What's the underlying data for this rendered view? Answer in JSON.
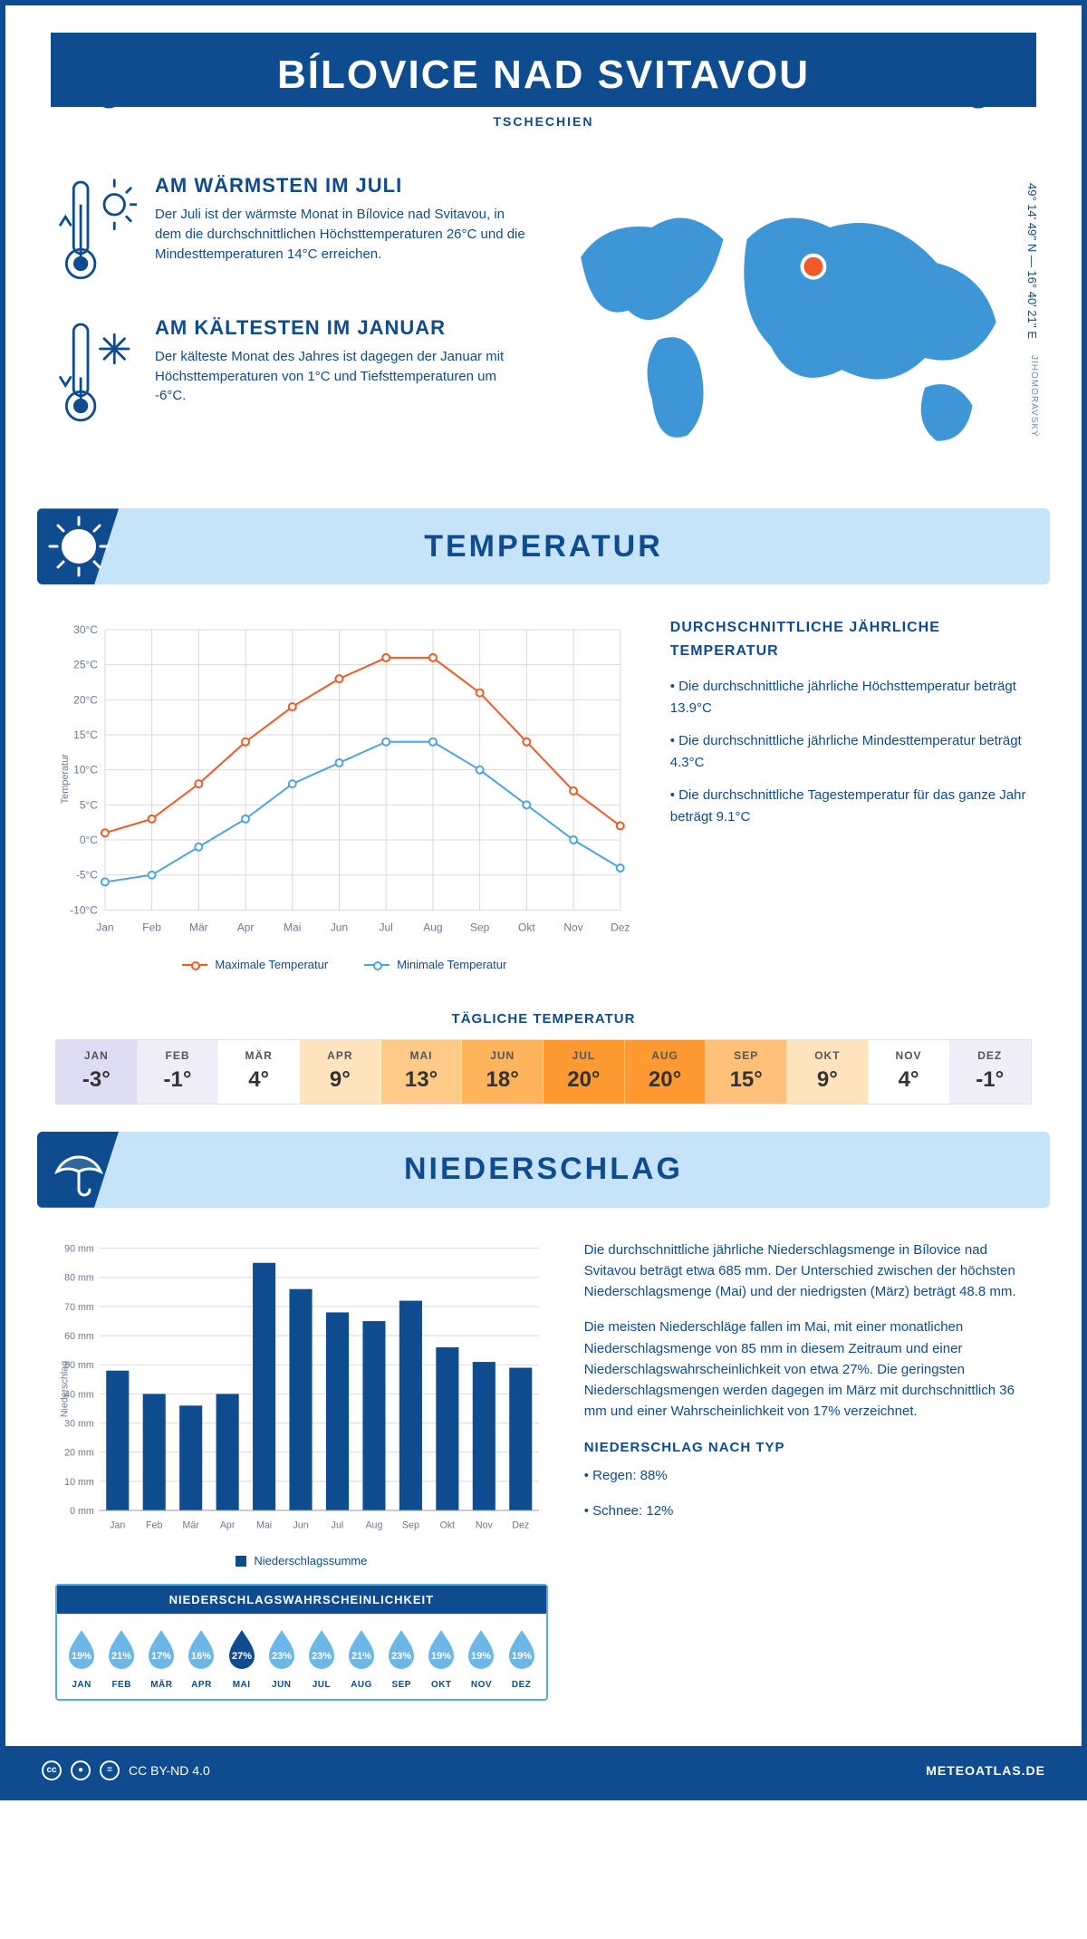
{
  "header": {
    "title": "BÍLOVICE NAD SVITAVOU",
    "country": "TSCHECHIEN",
    "coords": "49° 14' 49'' N — 16° 40' 21'' E",
    "region": "JIHOMORAVSKÝ"
  },
  "colors": {
    "brand": "#0e4c8f",
    "brand_light": "#4fa3de",
    "banner_bg": "#c5e3f9",
    "max_line": "#f05a28",
    "min_line": "#4fa3de",
    "grid": "#d9d9d9",
    "axis_text": "#6b7a91"
  },
  "facts": {
    "warm": {
      "title": "AM WÄRMSTEN IM JULI",
      "text": "Der Juli ist der wärmste Monat in Bílovice nad Svitavou, in dem die durchschnittlichen Höchsttemperaturen 26°C und die Mindesttemperaturen 14°C erreichen."
    },
    "cold": {
      "title": "AM KÄLTESTEN IM JANUAR",
      "text": "Der kälteste Monat des Jahres ist dagegen der Januar mit Höchsttemperaturen von 1°C und Tiefsttemperaturen um -6°C."
    }
  },
  "temperature": {
    "banner": "TEMPERATUR",
    "months": [
      "Jan",
      "Feb",
      "Mär",
      "Apr",
      "Mai",
      "Jun",
      "Jul",
      "Aug",
      "Sep",
      "Okt",
      "Nov",
      "Dez"
    ],
    "max": [
      1,
      3,
      8,
      14,
      19,
      23,
      26,
      26,
      21,
      14,
      7,
      2
    ],
    "min": [
      -6,
      -5,
      -1,
      3,
      8,
      11,
      14,
      14,
      10,
      5,
      0,
      -4
    ],
    "ylim": [
      -10,
      30
    ],
    "ytick_step": 5,
    "ylabel": "Temperatur",
    "legend_max": "Maximale Temperatur",
    "legend_min": "Minimale Temperatur",
    "stats_title": "DURCHSCHNITTLICHE JÄHRLICHE TEMPERATUR",
    "stat1": "• Die durchschnittliche jährliche Höchsttemperatur beträgt 13.9°C",
    "stat2": "• Die durchschnittliche jährliche Mindesttemperatur beträgt 4.3°C",
    "stat3": "• Die durchschnittliche Tagestemperatur für das ganze Jahr beträgt 9.1°C",
    "chart_style": {
      "line_width": 2,
      "marker_radius": 4,
      "font_size_tick": 12,
      "font_size_label": 11,
      "bg": "#ffffff"
    }
  },
  "daily": {
    "title": "TÄGLICHE TEMPERATUR",
    "months": [
      "JAN",
      "FEB",
      "MÄR",
      "APR",
      "MAI",
      "JUN",
      "JUL",
      "AUG",
      "SEP",
      "OKT",
      "NOV",
      "DEZ"
    ],
    "values": [
      "-3°",
      "-1°",
      "4°",
      "9°",
      "13°",
      "18°",
      "20°",
      "20°",
      "15°",
      "9°",
      "4°",
      "-1°"
    ],
    "colors": [
      "#dedcf3",
      "#eeedf8",
      "#ffffff",
      "#ffe4bd",
      "#ffc988",
      "#ffb35b",
      "#ff9a33",
      "#ff9a33",
      "#ffc07a",
      "#ffe4bd",
      "#ffffff",
      "#eeedf8"
    ]
  },
  "precipitation": {
    "banner": "NIEDERSCHLAG",
    "months": [
      "Jan",
      "Feb",
      "Mär",
      "Apr",
      "Mai",
      "Jun",
      "Jul",
      "Aug",
      "Sep",
      "Okt",
      "Nov",
      "Dez"
    ],
    "values": [
      48,
      40,
      36,
      40,
      85,
      76,
      68,
      65,
      72,
      56,
      51,
      49
    ],
    "ylim": [
      0,
      90
    ],
    "ytick_step": 10,
    "ylabel": "Niederschlag",
    "legend": "Niederschlagssumme",
    "bar_color": "#0e4c8f",
    "bar_width": 0.62,
    "text1": "Die durchschnittliche jährliche Niederschlagsmenge in Bílovice nad Svitavou beträgt etwa 685 mm. Der Unterschied zwischen der höchsten Niederschlagsmenge (Mai) und der niedrigsten (März) beträgt 48.8 mm.",
    "text2": "Die meisten Niederschläge fallen im Mai, mit einer monatlichen Niederschlagsmenge von 85 mm in diesem Zeitraum und einer Niederschlagswahrscheinlichkeit von etwa 27%. Die geringsten Niederschlagsmengen werden dagegen im März mit durchschnittlich 36 mm und einer Wahrscheinlichkeit von 17% verzeichnet.",
    "type_title": "NIEDERSCHLAG NACH TYP",
    "type_rain": "• Regen: 88%",
    "type_snow": "• Schnee: 12%"
  },
  "probability": {
    "title": "NIEDERSCHLAGSWAHRSCHEINLICHKEIT",
    "months": [
      "JAN",
      "FEB",
      "MÄR",
      "APR",
      "MAI",
      "JUN",
      "JUL",
      "AUG",
      "SEP",
      "OKT",
      "NOV",
      "DEZ"
    ],
    "values": [
      "19%",
      "21%",
      "17%",
      "16%",
      "27%",
      "23%",
      "23%",
      "21%",
      "23%",
      "19%",
      "19%",
      "19%"
    ],
    "drop_light": "#6db7e8",
    "drop_dark": "#0e4c8f",
    "highlight_index": 4
  },
  "footer": {
    "license": "CC BY-ND 4.0",
    "site": "METEOATLAS.DE"
  }
}
